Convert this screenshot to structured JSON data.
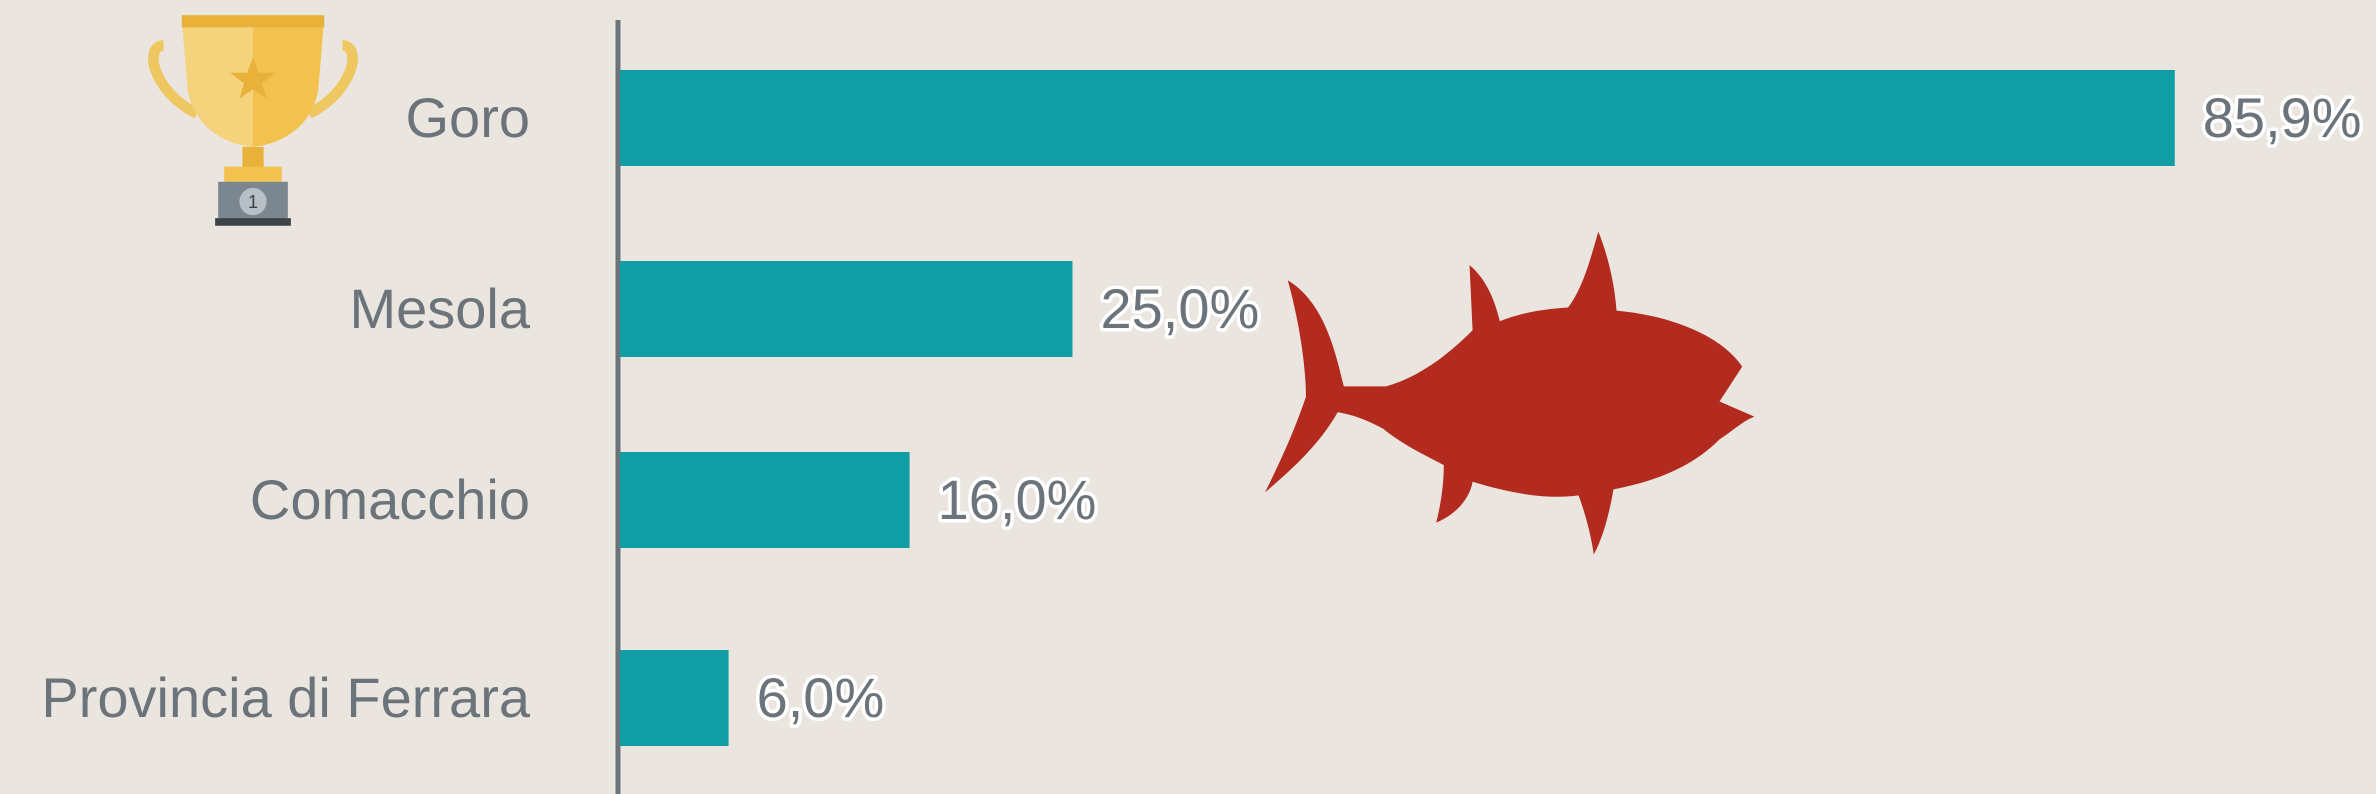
{
  "chart_data": {
    "type": "bar",
    "orientation": "horizontal",
    "categories": [
      "Goro",
      "Mesola",
      "Comacchio",
      "Provincia di Ferrara"
    ],
    "values": [
      85.9,
      25.0,
      16.0,
      6.0
    ],
    "value_labels": [
      "85,9%",
      "25,0%",
      "16,0%",
      "6,0%"
    ],
    "color": "#109ea4"
  }
}
